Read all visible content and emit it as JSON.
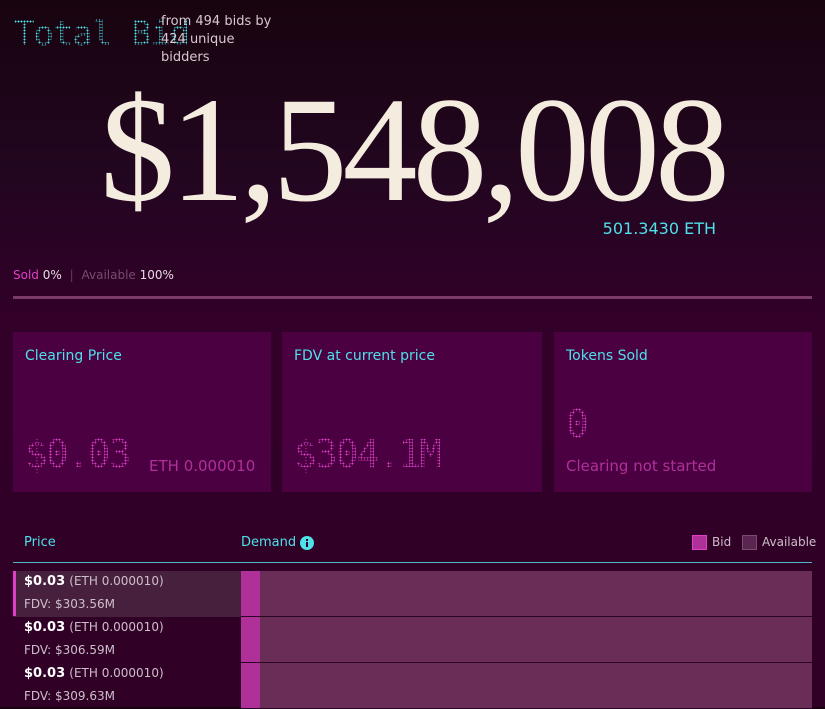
{
  "header": {
    "title": "Total Bid",
    "subtitle": "from 494 bids by 424 unique bidders"
  },
  "total": {
    "usd": "$1,548,008",
    "eth": "501.3430 ETH"
  },
  "progress": {
    "sold_label": "Sold",
    "sold_value": "0%",
    "available_label": "Available",
    "available_value": "100%"
  },
  "cards": [
    {
      "title": "Clearing Price",
      "value": "$0.03",
      "note": "ETH 0.000010"
    },
    {
      "title": "FDV at current price",
      "value": "$304.1M"
    },
    {
      "title": "Tokens Sold",
      "value": "0",
      "note": "Clearing not started"
    }
  ],
  "table": {
    "columns": [
      "Price",
      "Demand"
    ],
    "legend": [
      "Bid",
      "Available"
    ],
    "rows": [
      {
        "price": "$0.03",
        "eth": "(ETH 0.000010)",
        "fdv": "FDV: $303.56M"
      },
      {
        "price": "$0.03",
        "eth": "(ETH 0.000010)",
        "fdv": "FDV: $306.59M"
      },
      {
        "price": "$0.03",
        "eth": "(ETH 0.000010)",
        "fdv": "FDV: $309.63M"
      }
    ]
  }
}
